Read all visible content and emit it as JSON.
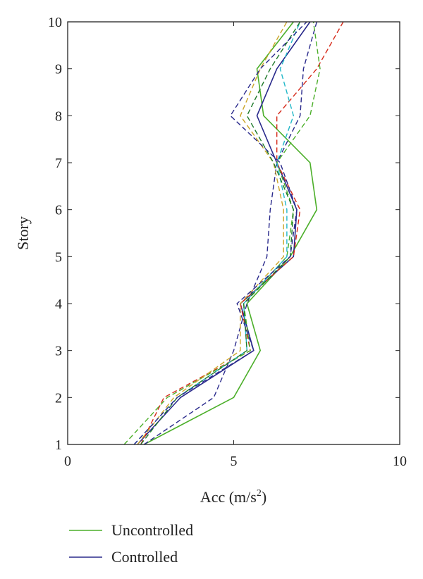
{
  "chart_data": {
    "type": "line",
    "title": "",
    "xlabel": "Acc (m/s",
    "xlabel_sup": "2",
    "xlabel_close": ")",
    "ylabel": "Story",
    "xlim": [
      0,
      10
    ],
    "ylim": [
      1,
      10
    ],
    "xticks": [
      0,
      5,
      10
    ],
    "yticks": [
      1,
      2,
      3,
      4,
      5,
      6,
      7,
      8,
      9,
      10
    ],
    "xtick_labels": [
      "0",
      "5",
      "10"
    ],
    "ytick_labels": [
      "1",
      "2",
      "3",
      "4",
      "5",
      "6",
      "7",
      "8",
      "9",
      "10"
    ],
    "grid": false,
    "legend_position": "bottom-left",
    "y": [
      1,
      2,
      3,
      4,
      5,
      6,
      7,
      8,
      9,
      10
    ],
    "series": [
      {
        "name": "Uncontrolled",
        "color": "#4caf2a",
        "style": "solid",
        "legend": true,
        "values": [
          2.3,
          5.0,
          5.8,
          5.4,
          6.7,
          7.5,
          7.3,
          5.9,
          5.7,
          6.8
        ]
      },
      {
        "name": "Controlled",
        "color": "#2a2a8c",
        "style": "solid",
        "legend": true,
        "values": [
          2.1,
          3.4,
          5.6,
          5.2,
          6.8,
          6.9,
          6.3,
          5.7,
          6.3,
          7.3
        ]
      },
      {
        "color": "#d62a1a",
        "style": "dashed",
        "legend": false,
        "values": [
          2.2,
          2.9,
          5.5,
          5.2,
          6.8,
          7.0,
          6.3,
          6.3,
          7.5,
          8.3
        ]
      },
      {
        "color": "#2a2a8c",
        "style": "dashed",
        "legend": false,
        "values": [
          2.3,
          4.4,
          5.0,
          5.4,
          6.0,
          6.1,
          6.3,
          7.0,
          7.1,
          7.5
        ]
      },
      {
        "color": "#4caf2a",
        "style": "dashed",
        "legend": false,
        "values": [
          1.7,
          3.0,
          5.5,
          5.3,
          6.6,
          6.8,
          6.3,
          7.3,
          7.6,
          7.4
        ]
      },
      {
        "color": "#22b8c8",
        "style": "dashed",
        "legend": false,
        "values": [
          2.0,
          3.3,
          5.4,
          5.3,
          6.6,
          6.6,
          6.3,
          6.8,
          6.4,
          7.0
        ]
      },
      {
        "color": "#cca62a",
        "style": "dashed",
        "legend": false,
        "values": [
          2.1,
          3.2,
          5.2,
          5.2,
          6.5,
          6.5,
          6.2,
          5.2,
          5.8,
          6.6
        ]
      },
      {
        "color": "#1e7a2a",
        "style": "dashed",
        "legend": false,
        "values": [
          2.2,
          3.3,
          5.4,
          5.3,
          6.7,
          6.8,
          6.2,
          5.4,
          6.1,
          7.0
        ]
      },
      {
        "color": "#2a2a8c",
        "style": "dashed",
        "legend": false,
        "values": [
          2.0,
          3.3,
          5.6,
          5.1,
          6.7,
          6.9,
          6.4,
          4.9,
          5.8,
          7.2
        ]
      }
    ]
  }
}
